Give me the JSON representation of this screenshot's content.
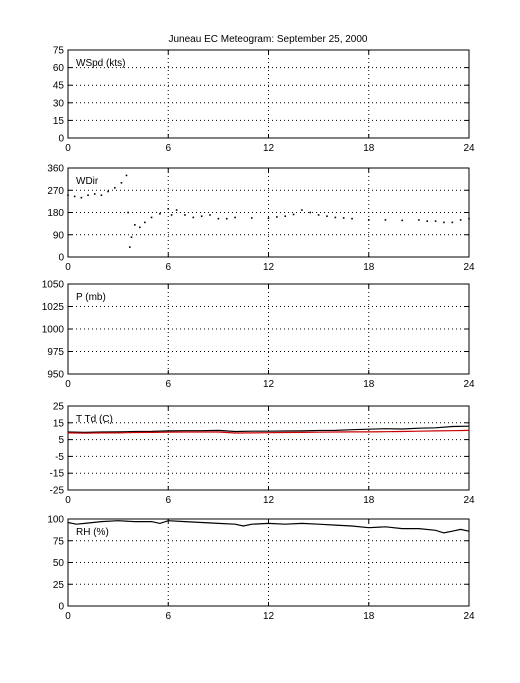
{
  "title": "Juneau EC Meteogram: September 25, 2000",
  "chart_data": [
    {
      "type": "line",
      "panel_label": "WSpd (kts)",
      "xlim": [
        0,
        24
      ],
      "xticks": [
        0,
        6,
        12,
        18,
        24
      ],
      "ylim": [
        0,
        75
      ],
      "yticks": [
        0,
        15,
        30,
        45,
        60,
        75
      ],
      "grid": true,
      "series": [
        {
          "color": "#000000",
          "x": [],
          "y": []
        }
      ]
    },
    {
      "type": "scatter",
      "panel_label": "WDir",
      "xlim": [
        0,
        24
      ],
      "xticks": [
        0,
        6,
        12,
        18,
        24
      ],
      "ylim": [
        0,
        360
      ],
      "yticks": [
        0,
        90,
        180,
        270,
        360
      ],
      "grid": true,
      "series": [
        {
          "color": "#000000",
          "x": [
            0,
            0.4,
            0.8,
            1.2,
            1.6,
            2.0,
            2.4,
            2.8,
            3.2,
            3.5,
            3.6,
            3.7,
            3.8,
            4.0,
            4.3,
            4.6,
            5.0,
            5.5,
            6.0,
            6.2,
            6.5,
            7.0,
            7.5,
            8.0,
            8.5,
            9.0,
            9.5,
            10.0,
            11.0,
            12.0,
            12.5,
            13.0,
            13.5,
            14.0,
            14.5,
            15.0,
            15.5,
            16.0,
            16.5,
            17.0,
            18.0,
            19.0,
            20.0,
            21.0,
            21.5,
            22.0,
            22.5,
            23.0,
            23.5,
            24.0
          ],
          "y": [
            250,
            245,
            240,
            250,
            255,
            250,
            265,
            280,
            300,
            330,
            180,
            40,
            80,
            130,
            120,
            140,
            160,
            175,
            195,
            170,
            190,
            170,
            160,
            165,
            170,
            155,
            155,
            160,
            158,
            157,
            162,
            165,
            172,
            190,
            180,
            170,
            165,
            160,
            158,
            155,
            150,
            150,
            148,
            150,
            145,
            145,
            140,
            140,
            150,
            155
          ]
        }
      ]
    },
    {
      "type": "line",
      "panel_label": "P (mb)",
      "xlim": [
        0,
        24
      ],
      "xticks": [
        0,
        6,
        12,
        18,
        24
      ],
      "ylim": [
        950,
        1050
      ],
      "yticks": [
        950,
        975,
        1000,
        1025,
        1050
      ],
      "grid": true,
      "series": [
        {
          "color": "#000000",
          "x": [],
          "y": []
        }
      ]
    },
    {
      "type": "line",
      "panel_label": "T Td (C)",
      "xlim": [
        0,
        24
      ],
      "xticks": [
        0,
        6,
        12,
        18,
        24
      ],
      "ylim": [
        -25,
        25
      ],
      "yticks": [
        -25,
        -15,
        -5,
        5,
        15,
        25
      ],
      "grid": true,
      "series": [
        {
          "color": "#000000",
          "x": [
            0,
            1,
            2,
            3,
            4,
            5,
            6,
            7,
            8,
            9,
            10,
            11,
            12,
            13,
            14,
            15,
            16,
            17,
            18,
            19,
            20,
            21,
            22,
            23,
            24
          ],
          "y": [
            9.5,
            9.3,
            9.5,
            9.6,
            9.8,
            9.9,
            10.2,
            10.3,
            10.3,
            10.5,
            9.8,
            10.0,
            10.0,
            10.1,
            10.2,
            10.4,
            10.5,
            10.9,
            11.2,
            11.5,
            11.3,
            11.8,
            12.0,
            12.8,
            13.0
          ]
        },
        {
          "color": "#cc0000",
          "x": [
            0,
            1,
            2,
            3,
            4,
            5,
            6,
            7,
            8,
            9,
            10,
            11,
            12,
            13,
            14,
            15,
            16,
            17,
            18,
            19,
            20,
            21,
            22,
            23,
            24
          ],
          "y": [
            9.0,
            8.8,
            9.0,
            9.0,
            9.2,
            9.3,
            9.4,
            9.5,
            9.5,
            9.5,
            8.9,
            9.0,
            9.1,
            9.2,
            9.3,
            9.4,
            9.5,
            9.6,
            9.6,
            9.7,
            9.8,
            10.0,
            10.2,
            10.3,
            10.5
          ]
        }
      ]
    },
    {
      "type": "line",
      "panel_label": "RH (%)",
      "xlim": [
        0,
        24
      ],
      "xticks": [
        0,
        6,
        12,
        18,
        24
      ],
      "ylim": [
        0,
        100
      ],
      "yticks": [
        0,
        25,
        50,
        75,
        100
      ],
      "grid": true,
      "series": [
        {
          "color": "#000000",
          "x": [
            0,
            0.5,
            1,
            2,
            3,
            4,
            5,
            5.5,
            6,
            7,
            8,
            9,
            10,
            10.5,
            11,
            12,
            13,
            14,
            15,
            16,
            17,
            18,
            19,
            20,
            21,
            22,
            22.5,
            23,
            23.5,
            24
          ],
          "y": [
            96,
            94,
            95,
            97,
            98,
            97,
            97,
            95,
            98,
            97,
            96,
            95,
            94,
            92,
            94,
            95,
            94,
            95,
            94,
            93,
            92,
            90,
            91,
            89,
            89,
            87,
            84,
            86,
            88,
            86
          ]
        }
      ]
    }
  ]
}
